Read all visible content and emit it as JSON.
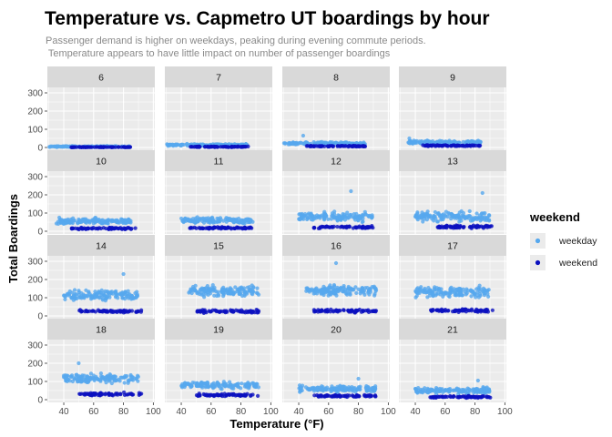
{
  "chart_data": {
    "type": "scatter",
    "title": "Temperature vs. Capmetro UT boardings by hour",
    "subtitle_lines": [
      "Passenger demand is higher on weekdays, peaking during evening commute periods.",
      " Temperature appears to have little impact on number of passenger boardings"
    ],
    "xlabel": "Temperature (°F)",
    "ylabel": "Total Boardings",
    "xlim": [
      29,
      101
    ],
    "ylim": [
      -15,
      330
    ],
    "x_ticks": [
      40,
      60,
      80,
      100
    ],
    "y_ticks": [
      0,
      100,
      200,
      300
    ],
    "grid": true,
    "facet_variable": "hour",
    "legend": {
      "title": "weekend",
      "position": "right",
      "entries": [
        {
          "label": "weekday",
          "color": "#56a8ee"
        },
        {
          "label": "weekend",
          "color": "#0b10bf"
        }
      ]
    },
    "colors": {
      "weekday": "#56a8ee",
      "weekend": "#0b10bf",
      "panel_bg": "#ebebeb",
      "strip_bg": "#d9d9d9",
      "grid": "#ffffff"
    },
    "panels": [
      {
        "hour": "6",
        "weekday": {
          "x_range": [
            30,
            85
          ],
          "y_mean": 5,
          "y_spread": 4
        },
        "weekend": {
          "x_range": [
            45,
            85
          ],
          "y_mean": 2,
          "y_spread": 2
        }
      },
      {
        "hour": "7",
        "weekday": {
          "x_range": [
            30,
            85
          ],
          "y_mean": 14,
          "y_spread": 8
        },
        "weekend": {
          "x_range": [
            45,
            85
          ],
          "y_mean": 4,
          "y_spread": 3
        }
      },
      {
        "hour": "8",
        "weekday": {
          "x_range": [
            30,
            85
          ],
          "y_mean": 22,
          "y_spread": 10
        },
        "weekend": {
          "x_range": [
            45,
            85
          ],
          "y_mean": 7,
          "y_spread": 4
        },
        "outliers": [
          [
            43,
            65
          ]
        ]
      },
      {
        "hour": "9",
        "weekday": {
          "x_range": [
            35,
            85
          ],
          "y_mean": 28,
          "y_spread": 14
        },
        "weekend": {
          "x_range": [
            45,
            85
          ],
          "y_mean": 10,
          "y_spread": 5
        },
        "outliers": [
          [
            36,
            50
          ]
        ]
      },
      {
        "hour": "10",
        "weekday": {
          "x_range": [
            35,
            85
          ],
          "y_mean": 55,
          "y_spread": 22
        },
        "weekend": {
          "x_range": [
            45,
            88
          ],
          "y_mean": 15,
          "y_spread": 7
        },
        "outliers": [
          [
            37,
            75
          ]
        ]
      },
      {
        "hour": "11",
        "weekday": {
          "x_range": [
            40,
            88
          ],
          "y_mean": 60,
          "y_spread": 25
        },
        "weekend": {
          "x_range": [
            45,
            88
          ],
          "y_mean": 18,
          "y_spread": 8
        }
      },
      {
        "hour": "12",
        "weekday": {
          "x_range": [
            40,
            90
          ],
          "y_mean": 80,
          "y_spread": 35
        },
        "weekend": {
          "x_range": [
            50,
            90
          ],
          "y_mean": 22,
          "y_spread": 9
        },
        "outliers": [
          [
            75,
            220
          ]
        ]
      },
      {
        "hour": "13",
        "weekday": {
          "x_range": [
            40,
            90
          ],
          "y_mean": 80,
          "y_spread": 38
        },
        "weekend": {
          "x_range": [
            55,
            92
          ],
          "y_mean": 25,
          "y_spread": 10
        },
        "outliers": [
          [
            85,
            210
          ],
          [
            40,
            80
          ]
        ]
      },
      {
        "hour": "14",
        "weekday": {
          "x_range": [
            40,
            90
          ],
          "y_mean": 115,
          "y_spread": 40
        },
        "weekend": {
          "x_range": [
            50,
            92
          ],
          "y_mean": 25,
          "y_spread": 10
        },
        "outliers": [
          [
            80,
            230
          ]
        ]
      },
      {
        "hour": "15",
        "weekday": {
          "x_range": [
            45,
            92
          ],
          "y_mean": 135,
          "y_spread": 40
        },
        "weekend": {
          "x_range": [
            50,
            92
          ],
          "y_mean": 25,
          "y_spread": 12
        }
      },
      {
        "hour": "16",
        "weekday": {
          "x_range": [
            45,
            92
          ],
          "y_mean": 140,
          "y_spread": 40
        },
        "weekend": {
          "x_range": [
            50,
            92
          ],
          "y_mean": 28,
          "y_spread": 12
        },
        "outliers": [
          [
            65,
            290
          ]
        ]
      },
      {
        "hour": "17",
        "weekday": {
          "x_range": [
            40,
            90
          ],
          "y_mean": 130,
          "y_spread": 45
        },
        "weekend": {
          "x_range": [
            50,
            92
          ],
          "y_mean": 30,
          "y_spread": 12
        }
      },
      {
        "hour": "18",
        "weekday": {
          "x_range": [
            40,
            90
          ],
          "y_mean": 115,
          "y_spread": 35
        },
        "weekend": {
          "x_range": [
            50,
            92
          ],
          "y_mean": 30,
          "y_spread": 12
        },
        "outliers": [
          [
            50,
            200
          ]
        ]
      },
      {
        "hour": "19",
        "weekday": {
          "x_range": [
            40,
            92
          ],
          "y_mean": 80,
          "y_spread": 25
        },
        "weekend": {
          "x_range": [
            50,
            92
          ],
          "y_mean": 25,
          "y_spread": 10
        }
      },
      {
        "hour": "20",
        "weekday": {
          "x_range": [
            40,
            92
          ],
          "y_mean": 60,
          "y_spread": 22
        },
        "weekend": {
          "x_range": [
            50,
            92
          ],
          "y_mean": 20,
          "y_spread": 8
        },
        "outliers": [
          [
            80,
            115
          ]
        ]
      },
      {
        "hour": "21",
        "weekday": {
          "x_range": [
            40,
            90
          ],
          "y_mean": 50,
          "y_spread": 22
        },
        "weekend": {
          "x_range": [
            50,
            92
          ],
          "y_mean": 15,
          "y_spread": 8
        },
        "outliers": [
          [
            82,
            105
          ]
        ]
      }
    ]
  }
}
